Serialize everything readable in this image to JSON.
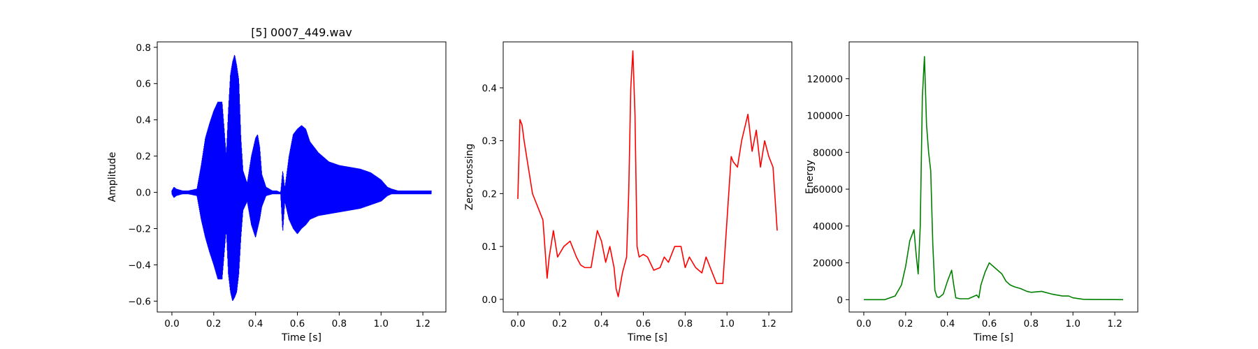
{
  "chart_data": [
    {
      "type": "line",
      "title": "[5] 0007_449.wav",
      "xlabel": "Time [s]",
      "ylabel": "Amplitude",
      "xlim": [
        -0.07,
        1.31
      ],
      "ylim": [
        -0.66,
        0.83
      ],
      "xticks": [
        "0.0",
        "0.2",
        "0.4",
        "0.6",
        "0.8",
        "1.0",
        "1.2"
      ],
      "yticks": [
        "−0.6",
        "−0.4",
        "−0.2",
        "0.0",
        "0.2",
        "0.4",
        "0.6",
        "0.8"
      ],
      "color": "#0000ff",
      "series": [
        {
          "style": "envelope",
          "x": [
            0.0,
            0.01,
            0.02,
            0.05,
            0.08,
            0.12,
            0.14,
            0.16,
            0.18,
            0.2,
            0.22,
            0.24,
            0.26,
            0.27,
            0.28,
            0.29,
            0.3,
            0.31,
            0.32,
            0.33,
            0.34,
            0.36,
            0.38,
            0.4,
            0.41,
            0.42,
            0.43,
            0.45,
            0.48,
            0.5,
            0.52,
            0.53,
            0.54,
            0.56,
            0.58,
            0.6,
            0.62,
            0.64,
            0.66,
            0.7,
            0.75,
            0.8,
            0.85,
            0.9,
            0.95,
            1.0,
            1.03,
            1.05,
            1.08,
            1.12,
            1.2,
            1.24
          ],
          "upper": [
            0.01,
            0.03,
            0.02,
            0.01,
            0.01,
            0.02,
            0.15,
            0.3,
            0.38,
            0.45,
            0.5,
            0.5,
            0.2,
            0.45,
            0.65,
            0.72,
            0.76,
            0.7,
            0.62,
            0.3,
            0.12,
            0.05,
            0.2,
            0.3,
            0.32,
            0.25,
            0.1,
            0.03,
            0.01,
            0.01,
            0.0,
            0.12,
            0.02,
            0.2,
            0.32,
            0.35,
            0.37,
            0.35,
            0.28,
            0.22,
            0.17,
            0.15,
            0.14,
            0.13,
            0.11,
            0.07,
            0.03,
            0.02,
            0.01,
            0.01,
            0.01,
            0.01
          ],
          "lower": [
            -0.01,
            -0.03,
            -0.02,
            -0.01,
            -0.01,
            -0.02,
            -0.15,
            -0.25,
            -0.33,
            -0.4,
            -0.48,
            -0.48,
            -0.2,
            -0.45,
            -0.55,
            -0.6,
            -0.58,
            -0.55,
            -0.45,
            -0.25,
            -0.1,
            -0.05,
            -0.18,
            -0.25,
            -0.2,
            -0.15,
            -0.08,
            -0.02,
            -0.01,
            -0.01,
            -0.01,
            -0.22,
            -0.05,
            -0.15,
            -0.2,
            -0.23,
            -0.2,
            -0.18,
            -0.15,
            -0.13,
            -0.12,
            -0.11,
            -0.1,
            -0.09,
            -0.07,
            -0.05,
            -0.02,
            -0.01,
            -0.01,
            -0.01,
            -0.01,
            -0.01
          ]
        }
      ]
    },
    {
      "type": "line",
      "title": "",
      "xlabel": "Time [s]",
      "ylabel": "Zero-crossing",
      "xlim": [
        -0.07,
        1.31
      ],
      "ylim": [
        -0.024,
        0.487
      ],
      "xticks": [
        "0.0",
        "0.2",
        "0.4",
        "0.6",
        "0.8",
        "1.0",
        "1.2"
      ],
      "yticks": [
        "0.0",
        "0.1",
        "0.2",
        "0.3",
        "0.4"
      ],
      "color": "#ff0000",
      "series": [
        {
          "x": [
            0.0,
            0.01,
            0.02,
            0.03,
            0.05,
            0.07,
            0.1,
            0.12,
            0.14,
            0.15,
            0.17,
            0.19,
            0.22,
            0.25,
            0.28,
            0.3,
            0.32,
            0.35,
            0.38,
            0.4,
            0.42,
            0.44,
            0.46,
            0.47,
            0.48,
            0.5,
            0.52,
            0.53,
            0.54,
            0.55,
            0.56,
            0.57,
            0.58,
            0.6,
            0.62,
            0.65,
            0.68,
            0.7,
            0.72,
            0.75,
            0.78,
            0.8,
            0.82,
            0.85,
            0.88,
            0.9,
            0.92,
            0.95,
            0.98,
            1.0,
            1.02,
            1.03,
            1.05,
            1.07,
            1.1,
            1.12,
            1.14,
            1.16,
            1.18,
            1.2,
            1.22,
            1.24
          ],
          "y": [
            0.19,
            0.34,
            0.33,
            0.3,
            0.25,
            0.2,
            0.17,
            0.15,
            0.04,
            0.08,
            0.13,
            0.08,
            0.1,
            0.11,
            0.08,
            0.065,
            0.06,
            0.06,
            0.13,
            0.11,
            0.07,
            0.1,
            0.06,
            0.02,
            0.005,
            0.05,
            0.08,
            0.2,
            0.4,
            0.47,
            0.35,
            0.1,
            0.08,
            0.085,
            0.08,
            0.055,
            0.06,
            0.08,
            0.07,
            0.1,
            0.1,
            0.06,
            0.08,
            0.06,
            0.05,
            0.08,
            0.06,
            0.03,
            0.03,
            0.15,
            0.27,
            0.26,
            0.25,
            0.3,
            0.35,
            0.28,
            0.32,
            0.25,
            0.3,
            0.27,
            0.25,
            0.13
          ]
        }
      ]
    },
    {
      "type": "line",
      "title": "",
      "xlabel": "Time [s]",
      "ylabel": "Energy",
      "xlim": [
        -0.07,
        1.31
      ],
      "ylim": [
        -6700,
        140000
      ],
      "xticks": [
        "0.0",
        "0.2",
        "0.4",
        "0.6",
        "0.8",
        "1.0",
        "1.2"
      ],
      "yticks": [
        "0",
        "20000",
        "40000",
        "60000",
        "80000",
        "100000",
        "120000"
      ],
      "color": "#008000",
      "series": [
        {
          "x": [
            0.0,
            0.05,
            0.1,
            0.15,
            0.18,
            0.2,
            0.22,
            0.24,
            0.25,
            0.26,
            0.27,
            0.28,
            0.29,
            0.3,
            0.31,
            0.32,
            0.33,
            0.34,
            0.35,
            0.36,
            0.38,
            0.4,
            0.42,
            0.43,
            0.44,
            0.46,
            0.5,
            0.54,
            0.55,
            0.56,
            0.58,
            0.6,
            0.62,
            0.64,
            0.66,
            0.68,
            0.7,
            0.72,
            0.75,
            0.78,
            0.8,
            0.85,
            0.9,
            0.95,
            0.98,
            1.0,
            1.05,
            1.1,
            1.2,
            1.24
          ],
          "y": [
            0,
            0,
            0,
            2000,
            8000,
            18000,
            32000,
            38000,
            25000,
            14000,
            40000,
            110000,
            132000,
            95000,
            80000,
            70000,
            30000,
            5000,
            1500,
            1200,
            3000,
            10000,
            16000,
            8000,
            1000,
            500,
            500,
            2500,
            1000,
            8000,
            15000,
            20000,
            18000,
            16000,
            14000,
            10000,
            8000,
            7000,
            6000,
            4500,
            4000,
            4500,
            3000,
            2000,
            2000,
            1000,
            200,
            100,
            50,
            0
          ]
        }
      ]
    }
  ]
}
